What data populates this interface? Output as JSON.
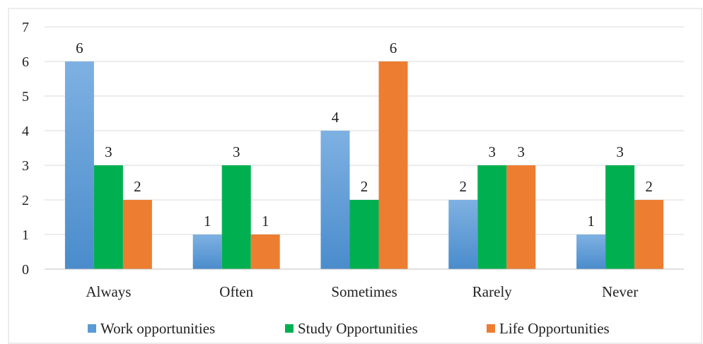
{
  "chart_data": {
    "type": "bar",
    "categories": [
      "Always",
      "Often",
      "Sometimes",
      "Rarely",
      "Never"
    ],
    "series": [
      {
        "name": "Work opportunities",
        "values": [
          6,
          1,
          4,
          2,
          1
        ],
        "color": "#5b9bd5"
      },
      {
        "name": "Study Opportunities",
        "values": [
          3,
          3,
          2,
          3,
          3
        ],
        "color": "#00b050"
      },
      {
        "name": "Life Opportunities",
        "values": [
          2,
          1,
          6,
          3,
          2
        ],
        "color": "#ed7d31"
      }
    ],
    "y_ticks": [
      "0",
      "1",
      "2",
      "3",
      "4",
      "5",
      "6",
      "7"
    ],
    "ylim": [
      0,
      7
    ],
    "title": "",
    "xlabel": "",
    "ylabel": "",
    "grid": true,
    "data_labels": true,
    "legend_position": "bottom"
  }
}
